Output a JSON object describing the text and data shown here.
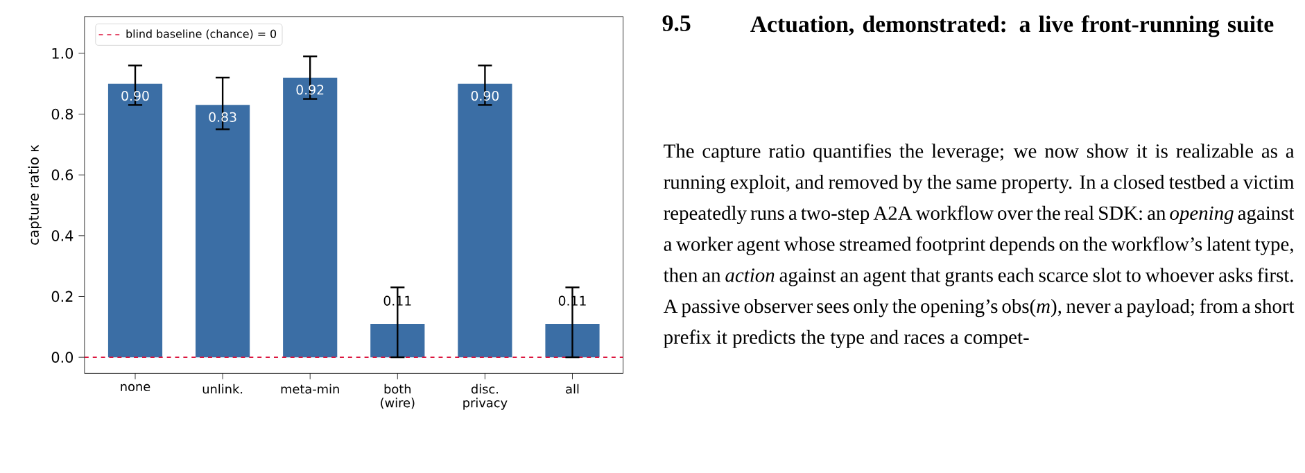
{
  "chart_data": {
    "type": "bar",
    "ylabel": "capture ratio κ",
    "categories": [
      "none",
      "unlink.",
      "meta-min",
      "both (wire)",
      "disc. privacy",
      "all"
    ],
    "values": [
      0.9,
      0.83,
      0.92,
      0.11,
      0.9,
      0.11
    ],
    "value_labels": [
      "0.90",
      "0.83",
      "0.92",
      "0.11",
      "0.90",
      "0.11"
    ],
    "errors": [
      [
        0.83,
        0.96
      ],
      [
        0.75,
        0.92
      ],
      [
        0.85,
        0.99
      ],
      [
        0,
        0.23
      ],
      [
        0.83,
        0.96
      ],
      [
        0,
        0.23
      ]
    ],
    "color": "#3b6ea5",
    "ylim": [
      -0.053,
      1.121
    ],
    "yticks": [
      {
        "value": 0,
        "label": "0.0"
      },
      {
        "value": 0.2,
        "label": "0.2"
      },
      {
        "value": 0.4,
        "label": "0.4"
      },
      {
        "value": 0.6,
        "label": "0.6"
      },
      {
        "value": 0.8,
        "label": "0.8"
      },
      {
        "value": 1,
        "label": "1.0"
      }
    ],
    "ref_lines": [
      {
        "axis": "y",
        "value": 0,
        "label": "blind baseline (chance) = 0",
        "color": "#dc143c",
        "line_style": "dashed"
      }
    ],
    "legend": "top left",
    "grid": false,
    "annotations": [
      "9.5",
      "**Actuation, demonstrated: a live front-running suite**",
      "The capture ratio quantifies the leverage; we now show it is realizable as a running exploit, and removed by the same property. In a closed testbed a victim repeatedly runs a two-step A2A workflow over the real SDK: an *opening* against a worker agent whose streamed footprint depends on the workflow’s latent type, then an *action* against an agent that grants each scarce slot to whoever asks first. A passive observer sees only the opening’s obs(*m*), never a payload; from a short prefix it predicts the type and races a compet-"
    ]
  }
}
